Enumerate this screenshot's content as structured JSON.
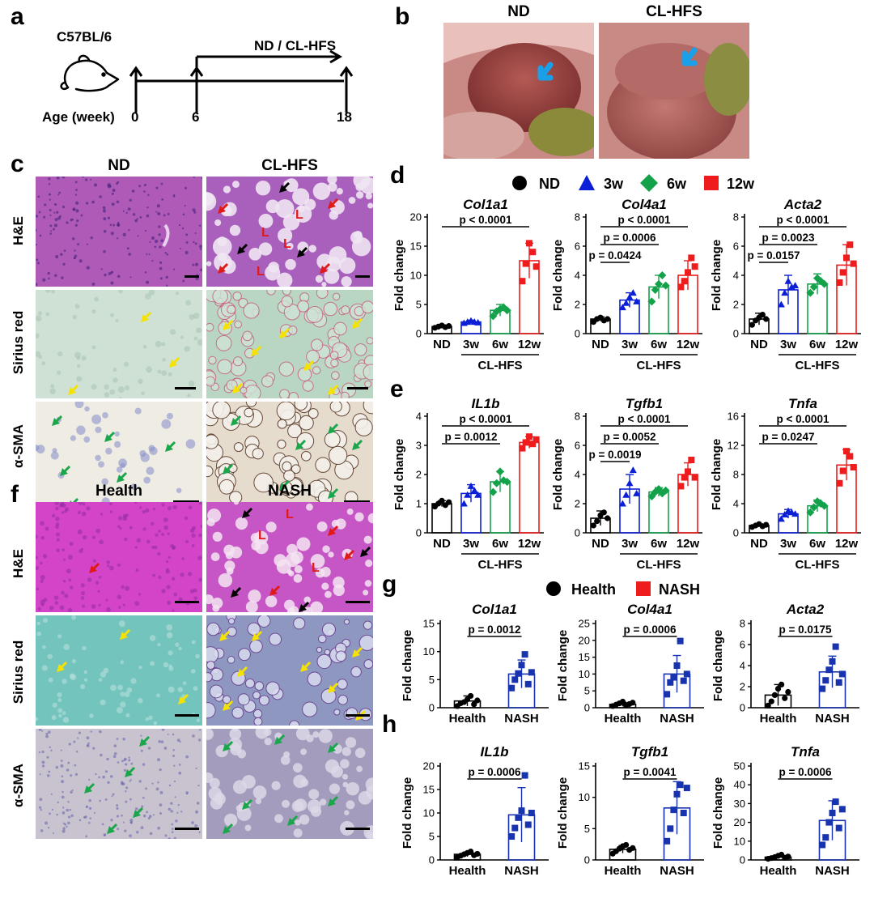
{
  "panel_labels": {
    "a": "a",
    "b": "b",
    "c": "c",
    "d": "d",
    "e": "e",
    "f": "f",
    "g": "g",
    "h": "h"
  },
  "timeline": {
    "strain": "C57BL/6",
    "treatment": "ND / CL-HFS",
    "age_label": "Age (week)",
    "ticks": [
      "0",
      "6",
      "18"
    ]
  },
  "photo_titles": {
    "left": "ND",
    "right": "CL-HFS"
  },
  "histo_c": {
    "col_titles": [
      "ND",
      "CL-HFS"
    ],
    "row_labels": [
      "H&E",
      "Sirius red",
      "α-SMA"
    ],
    "lipid_marker": "L"
  },
  "histo_f": {
    "col_titles": [
      "Health",
      "NASH"
    ],
    "row_labels": [
      "H&E",
      "Sirius red",
      "α-SMA"
    ],
    "lipid_marker": "L"
  },
  "legend_de": {
    "items": [
      "ND",
      "3w",
      "6w",
      "12w"
    ],
    "colors": [
      "#000000",
      "#0a1fd6",
      "#13a24a",
      "#ee1c1c"
    ]
  },
  "legend_gh": {
    "items": [
      "Health",
      "NASH"
    ],
    "colors": [
      "#000000",
      "#ee1c1c"
    ]
  },
  "axis": {
    "ylabel": "Fold change",
    "group": "CL-HFS"
  },
  "chart_data": [
    {
      "type": "bar",
      "panel": "d",
      "title": "Col1a1",
      "categories": [
        "ND",
        "3w",
        "6w",
        "12w"
      ],
      "values": [
        1.2,
        2.0,
        4.0,
        12.5
      ],
      "errors": [
        0.3,
        0.3,
        1.0,
        3.0
      ],
      "ylim": [
        0,
        20
      ],
      "yticks": [
        0,
        5,
        10,
        15,
        20
      ],
      "points": [
        [
          1.0,
          1.2,
          1.4,
          1.1,
          1.3
        ],
        [
          1.8,
          2.0,
          2.2,
          2.0,
          1.9
        ],
        [
          3.0,
          3.8,
          4.2,
          4.5,
          4.0
        ],
        [
          9.0,
          12.0,
          15.5,
          14.0,
          11.5
        ]
      ],
      "comparisons": [
        {
          "from": "ND",
          "to": "12w",
          "text": "p < 0.0001"
        }
      ]
    },
    {
      "type": "bar",
      "panel": "d",
      "title": "Col4a1",
      "categories": [
        "ND",
        "3w",
        "6w",
        "12w"
      ],
      "values": [
        1.0,
        2.3,
        3.2,
        4.0
      ],
      "errors": [
        0.15,
        0.5,
        0.8,
        1.0
      ],
      "ylim": [
        0,
        8
      ],
      "yticks": [
        0,
        2,
        4,
        6,
        8
      ],
      "points": [
        [
          0.8,
          1.0,
          1.1,
          0.9,
          1.0
        ],
        [
          1.8,
          2.1,
          2.5,
          2.8,
          2.2
        ],
        [
          2.2,
          3.0,
          3.4,
          4.0,
          3.3
        ],
        [
          3.2,
          3.6,
          4.2,
          5.2,
          4.6
        ]
      ],
      "comparisons": [
        {
          "from": "ND",
          "to": "3w",
          "text": "p = 0.0424"
        },
        {
          "from": "ND",
          "to": "6w",
          "text": "p = 0.0006"
        },
        {
          "from": "ND",
          "to": "12w",
          "text": "p < 0.0001"
        }
      ]
    },
    {
      "type": "bar",
      "panel": "d",
      "title": "Acta2",
      "categories": [
        "ND",
        "3w",
        "6w",
        "12w"
      ],
      "values": [
        1.0,
        3.0,
        3.4,
        4.7
      ],
      "errors": [
        0.4,
        1.0,
        0.7,
        1.4
      ],
      "ylim": [
        0,
        8
      ],
      "yticks": [
        0,
        2,
        4,
        6,
        8
      ],
      "points": [
        [
          0.6,
          0.9,
          1.1,
          1.3,
          1.0
        ],
        [
          2.0,
          2.8,
          3.6,
          3.2,
          3.3
        ],
        [
          2.8,
          3.2,
          3.8,
          3.6,
          3.4
        ],
        [
          3.5,
          4.2,
          5.2,
          6.1,
          4.8
        ]
      ],
      "comparisons": [
        {
          "from": "ND",
          "to": "3w",
          "text": "p = 0.0157"
        },
        {
          "from": "ND",
          "to": "6w",
          "text": "p = 0.0023"
        },
        {
          "from": "ND",
          "to": "12w",
          "text": "p < 0.0001"
        }
      ]
    },
    {
      "type": "bar",
      "panel": "e",
      "title": "IL1b",
      "categories": [
        "ND",
        "3w",
        "6w",
        "12w"
      ],
      "values": [
        1.0,
        1.35,
        1.75,
        3.1
      ],
      "errors": [
        0.1,
        0.3,
        0.35,
        0.2
      ],
      "ylim": [
        0,
        4
      ],
      "yticks": [
        0,
        1,
        2,
        3,
        4
      ],
      "points": [
        [
          0.9,
          1.0,
          1.1,
          0.95,
          1.05
        ],
        [
          1.0,
          1.3,
          1.6,
          1.45,
          1.3
        ],
        [
          1.4,
          1.7,
          2.1,
          1.8,
          1.75
        ],
        [
          2.9,
          3.1,
          3.3,
          3.05,
          3.2
        ]
      ],
      "comparisons": [
        {
          "from": "ND",
          "to": "6w",
          "text": "p = 0.0012"
        },
        {
          "from": "ND",
          "to": "12w",
          "text": "p < 0.0001"
        }
      ]
    },
    {
      "type": "bar",
      "panel": "e",
      "title": "Tgfb1",
      "categories": [
        "ND",
        "3w",
        "6w",
        "12w"
      ],
      "values": [
        1.0,
        3.0,
        2.8,
        4.0
      ],
      "errors": [
        0.5,
        1.0,
        0.3,
        0.8
      ],
      "ylim": [
        0,
        8
      ],
      "yticks": [
        0,
        2,
        4,
        6,
        8
      ],
      "points": [
        [
          0.5,
          0.8,
          1.2,
          1.4,
          1.0
        ],
        [
          2.0,
          2.6,
          3.4,
          4.3,
          2.7
        ],
        [
          2.5,
          2.8,
          3.0,
          2.7,
          2.9
        ],
        [
          3.2,
          3.8,
          4.2,
          5.0,
          3.8
        ]
      ],
      "comparisons": [
        {
          "from": "ND",
          "to": "3w",
          "text": "p = 0.0019"
        },
        {
          "from": "ND",
          "to": "6w",
          "text": "p = 0.0052"
        },
        {
          "from": "ND",
          "to": "12w",
          "text": "p < 0.0001"
        }
      ]
    },
    {
      "type": "bar",
      "panel": "e",
      "title": "Tnfa",
      "categories": [
        "ND",
        "3w",
        "6w",
        "12w"
      ],
      "values": [
        1.0,
        2.6,
        3.7,
        9.3
      ],
      "errors": [
        0.2,
        0.6,
        0.8,
        2.1
      ],
      "ylim": [
        0,
        16
      ],
      "yticks": [
        0,
        4,
        8,
        12,
        16
      ],
      "points": [
        [
          0.8,
          1.0,
          1.2,
          0.9,
          1.1
        ],
        [
          1.9,
          2.5,
          3.0,
          2.8,
          2.6
        ],
        [
          2.8,
          3.5,
          4.3,
          4.0,
          3.7
        ],
        [
          6.8,
          8.5,
          11.2,
          10.5,
          9.0
        ]
      ],
      "comparisons": [
        {
          "from": "ND",
          "to": "6w",
          "text": "p = 0.0247"
        },
        {
          "from": "ND",
          "to": "12w",
          "text": "p < 0.0001"
        }
      ]
    },
    {
      "type": "bar",
      "panel": "g",
      "title": "Col1a1",
      "categories": [
        "Health",
        "NASH"
      ],
      "values": [
        1.2,
        6.0
      ],
      "errors": [
        0.9,
        2.5
      ],
      "ylim": [
        0,
        15
      ],
      "yticks": [
        0,
        5,
        10,
        15
      ],
      "points": [
        [
          0.3,
          0.8,
          1.0,
          1.5,
          2.1,
          0.6,
          1.3
        ],
        [
          3.5,
          5.0,
          6.1,
          7.6,
          9.5,
          4.2,
          6.3
        ]
      ],
      "comparisons": [
        {
          "from": "Health",
          "to": "NASH",
          "text": "p = 0.0012"
        }
      ]
    },
    {
      "type": "bar",
      "panel": "g",
      "title": "Col4a1",
      "categories": [
        "Health",
        "NASH"
      ],
      "values": [
        1.0,
        10.0
      ],
      "errors": [
        0.6,
        5.5
      ],
      "ylim": [
        0,
        25
      ],
      "yticks": [
        0,
        5,
        10,
        15,
        20,
        25
      ],
      "points": [
        [
          0.5,
          0.9,
          1.3,
          1.8,
          0.7,
          1.1,
          1.5
        ],
        [
          4.0,
          7.5,
          9.0,
          12.5,
          19.8,
          8.0,
          10.0
        ]
      ],
      "comparisons": [
        {
          "from": "Health",
          "to": "NASH",
          "text": "p = 0.0006"
        }
      ]
    },
    {
      "type": "bar",
      "panel": "g",
      "title": "Acta2",
      "categories": [
        "Health",
        "NASH"
      ],
      "values": [
        1.2,
        3.4
      ],
      "errors": [
        1.0,
        1.5
      ],
      "ylim": [
        0,
        8
      ],
      "yticks": [
        0,
        2,
        4,
        6,
        8
      ],
      "points": [
        [
          0.2,
          0.6,
          1.2,
          1.8,
          2.2,
          0.9,
          1.5
        ],
        [
          1.8,
          2.6,
          3.6,
          4.4,
          5.8,
          2.4,
          3.2
        ]
      ],
      "comparisons": [
        {
          "from": "Health",
          "to": "NASH",
          "text": "p = 0.0175"
        }
      ]
    },
    {
      "type": "bar",
      "panel": "h",
      "title": "IL1b",
      "categories": [
        "Health",
        "NASH"
      ],
      "values": [
        1.2,
        9.6
      ],
      "errors": [
        0.5,
        5.8
      ],
      "ylim": [
        0,
        20
      ],
      "yticks": [
        0,
        5,
        10,
        15,
        20
      ],
      "points": [
        [
          0.6,
          0.9,
          1.2,
          1.5,
          1.8,
          1.0,
          1.3
        ],
        [
          5.0,
          6.8,
          9.0,
          10.5,
          18.0,
          7.5,
          10.0
        ]
      ],
      "comparisons": [
        {
          "from": "Health",
          "to": "NASH",
          "text": "p = 0.0006"
        }
      ]
    },
    {
      "type": "bar",
      "panel": "h",
      "title": "Tgfb1",
      "categories": [
        "Health",
        "NASH"
      ],
      "values": [
        1.7,
        8.3
      ],
      "errors": [
        0.6,
        4.2
      ],
      "ylim": [
        0,
        15
      ],
      "yticks": [
        0,
        5,
        10,
        15
      ],
      "points": [
        [
          1.0,
          1.4,
          1.8,
          2.2,
          2.4,
          1.6,
          1.9
        ],
        [
          3.0,
          5.0,
          8.0,
          10.5,
          12.0,
          7.5,
          11.5
        ]
      ],
      "comparisons": [
        {
          "from": "Health",
          "to": "NASH",
          "text": "p = 0.0041"
        }
      ]
    },
    {
      "type": "bar",
      "panel": "h",
      "title": "Tnfa",
      "categories": [
        "Health",
        "NASH"
      ],
      "values": [
        1.5,
        21.0
      ],
      "errors": [
        0.8,
        10.5
      ],
      "ylim": [
        0,
        50
      ],
      "yticks": [
        0,
        10,
        20,
        30,
        40,
        50
      ],
      "points": [
        [
          0.6,
          1.0,
          1.5,
          2.2,
          2.8,
          1.2,
          1.8
        ],
        [
          8.0,
          12.0,
          20.0,
          25.0,
          31.0,
          17.0,
          27.0
        ]
      ],
      "comparisons": [
        {
          "from": "Health",
          "to": "NASH",
          "text": "p = 0.0006"
        }
      ]
    }
  ]
}
